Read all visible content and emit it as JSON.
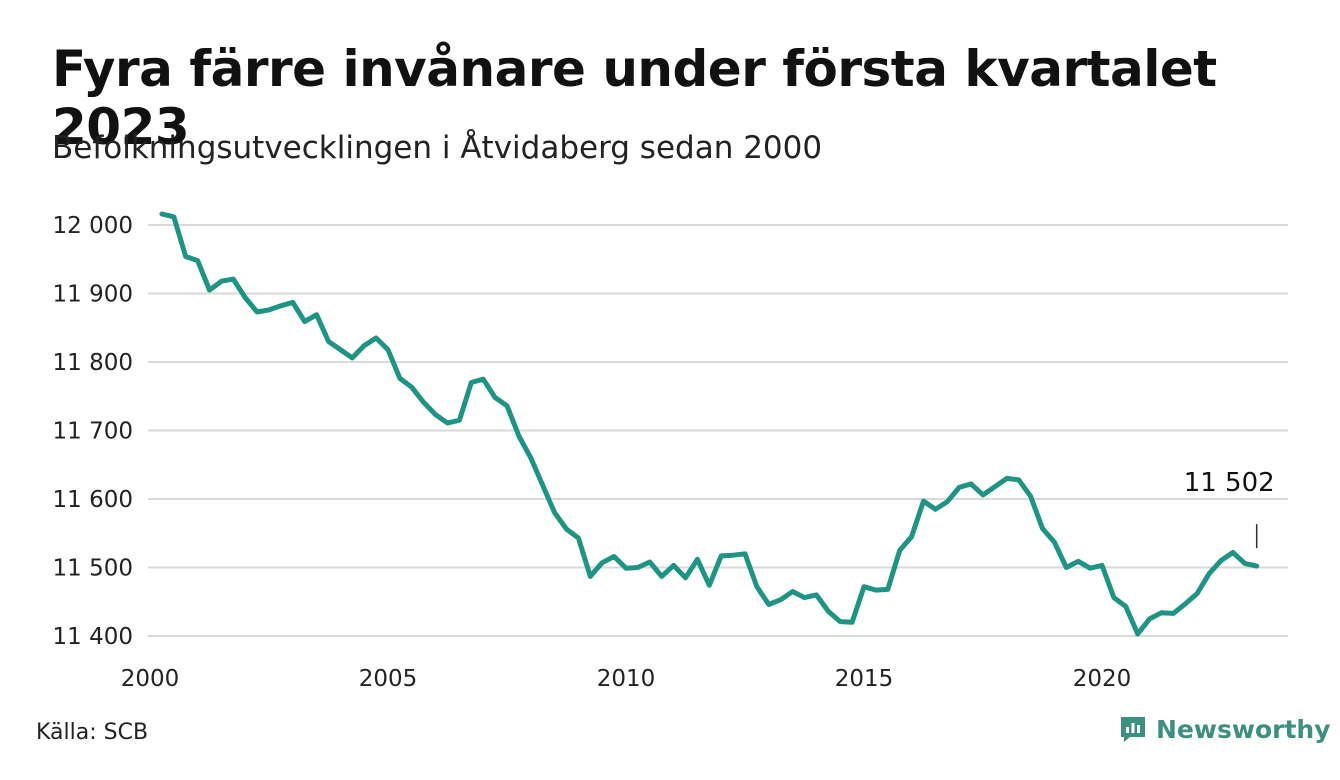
{
  "header": {
    "title": "Fyra färre invånare under första kvartalet 2023",
    "subtitle": "Befolkningsutvecklingen i Åtvidaberg sedan 2000"
  },
  "footer": {
    "source": "Källa: SCB",
    "brand": "Newsworthy"
  },
  "colors": {
    "line": "#1f9384",
    "grid": "#d9d9d9",
    "brand": "#3d8f7f"
  },
  "chart_data": {
    "type": "line",
    "title": "Fyra färre invånare under första kvartalet 2023",
    "subtitle": "Befolkningsutvecklingen i Åtvidaberg sedan 2000",
    "x_ticks": [
      2000,
      2005,
      2010,
      2015,
      2020
    ],
    "y_ticks": [
      11400,
      11500,
      11600,
      11700,
      11800,
      11900,
      12000
    ],
    "y_tick_labels": [
      "11 400",
      "11 500",
      "11 600",
      "11 700",
      "11 800",
      "11 900",
      "12 000"
    ],
    "xlim": [
      2000,
      2023.6
    ],
    "ylim": [
      11385,
      12025
    ],
    "grid": "horizontal",
    "end_label": "11 502",
    "series": [
      {
        "x": [
          2000.25,
          2000.5,
          2000.75,
          2001.0,
          2001.25,
          2001.5,
          2001.75,
          2002.0,
          2002.25,
          2002.5,
          2002.75,
          2003.0,
          2003.25,
          2003.5,
          2003.75,
          2004.0,
          2004.25,
          2004.5,
          2004.75,
          2005.0,
          2005.25,
          2005.5,
          2005.75,
          2006.0,
          2006.25,
          2006.5,
          2006.75,
          2007.0,
          2007.25,
          2007.5,
          2007.75,
          2008.0,
          2008.25,
          2008.5,
          2008.75,
          2009.0,
          2009.25,
          2009.5,
          2009.75,
          2010.0,
          2010.25,
          2010.5,
          2010.75,
          2011.0,
          2011.25,
          2011.5,
          2011.75,
          2012.0,
          2012.25,
          2012.5,
          2012.75,
          2013.0,
          2013.25,
          2013.5,
          2013.75,
          2014.0,
          2014.25,
          2014.5,
          2014.75,
          2015.0,
          2015.25,
          2015.5,
          2015.75,
          2016.0,
          2016.25,
          2016.5,
          2016.75,
          2017.0,
          2017.25,
          2017.5,
          2017.75,
          2018.0,
          2018.25,
          2018.5,
          2018.75,
          2019.0,
          2019.25,
          2019.5,
          2019.75,
          2020.0,
          2020.25,
          2020.5,
          2020.75,
          2021.0,
          2021.25,
          2021.5,
          2021.75,
          2022.0,
          2022.25,
          2022.5,
          2022.75,
          2023.0,
          2023.25
        ],
        "values": [
          12016,
          12012,
          11954,
          11948,
          11905,
          11918,
          11921,
          11894,
          11873,
          11876,
          11882,
          11887,
          11859,
          11869,
          11830,
          11818,
          11806,
          11824,
          11835,
          11818,
          11776,
          11763,
          11741,
          11723,
          11711,
          11715,
          11770,
          11775,
          11748,
          11736,
          11692,
          11660,
          11620,
          11580,
          11556,
          11543,
          11487,
          11507,
          11516,
          11499,
          11500,
          11508,
          11487,
          11503,
          11485,
          11512,
          11474,
          11517,
          11518,
          11520,
          11472,
          11446,
          11453,
          11465,
          11456,
          11460,
          11436,
          11421,
          11420,
          11472,
          11467,
          11468,
          11525,
          11545,
          11597,
          11585,
          11596,
          11617,
          11622,
          11606,
          11618,
          11630,
          11628,
          11604,
          11557,
          11537,
          11500,
          11509,
          11499,
          11503,
          11456,
          11443,
          11403,
          11425,
          11434,
          11433,
          11447,
          11462,
          11491,
          11510,
          11522,
          11506,
          11502
        ]
      }
    ]
  }
}
